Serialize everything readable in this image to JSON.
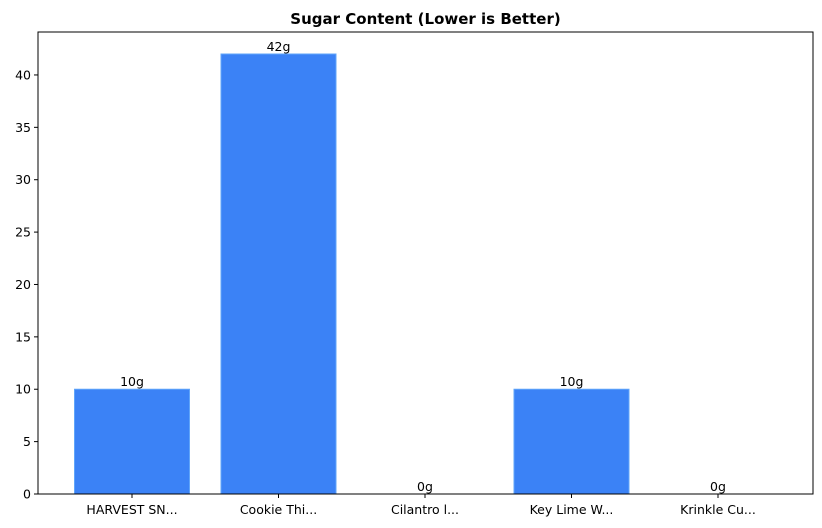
{
  "chart_data": {
    "type": "bar",
    "title": "Sugar Content (Lower is Better)",
    "xlabel": "",
    "ylabel": "",
    "categories": [
      "HARVEST SN...",
      "Cookie Thi...",
      "Cilantro l...",
      "Key Lime W...",
      "Krinkle Cu..."
    ],
    "values": [
      10,
      42,
      0,
      10,
      0
    ],
    "data_labels": [
      "10g",
      "42g",
      "0g",
      "10g",
      "0g"
    ],
    "ylim": [
      0,
      44.1
    ],
    "yticks": [
      0,
      5,
      10,
      15,
      20,
      25,
      30,
      35,
      40
    ],
    "grid": false,
    "bar_color": "#3b82f6",
    "bar_edge_color": "#60a5fa"
  }
}
